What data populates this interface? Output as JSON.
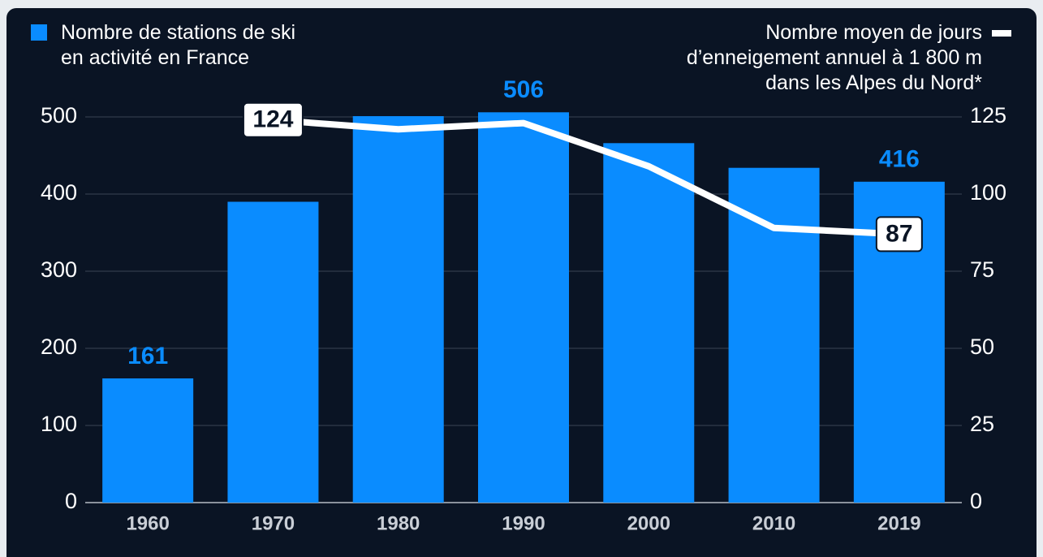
{
  "chart_data": {
    "type": "bar+line",
    "categories": [
      "1960",
      "1970",
      "1980",
      "1990",
      "2000",
      "2010",
      "2019"
    ],
    "series": [
      {
        "name": "Nombre de stations de ski\nen activité en France",
        "type": "bar",
        "color": "#0a8cff",
        "values": [
          161,
          390,
          501,
          506,
          466,
          434,
          416
        ],
        "value_labels": [
          "161",
          null,
          null,
          "506",
          null,
          null,
          "416"
        ]
      },
      {
        "name": "Nombre moyen de jours\nd’enneigement annuel à 1 800 m\ndans les Alpes du Nord*",
        "type": "line",
        "color": "#ffffff",
        "axis": "y2",
        "values": [
          null,
          124,
          121,
          123,
          109,
          89,
          87
        ],
        "value_labels": [
          null,
          "124",
          null,
          null,
          null,
          null,
          "87"
        ]
      }
    ],
    "ylim": [
      0,
      500
    ],
    "yticks": [
      0,
      100,
      200,
      300,
      400,
      500
    ],
    "y2lim": [
      0,
      125
    ],
    "y2ticks": [
      0,
      25,
      50,
      75,
      100,
      125
    ],
    "grid": true
  }
}
